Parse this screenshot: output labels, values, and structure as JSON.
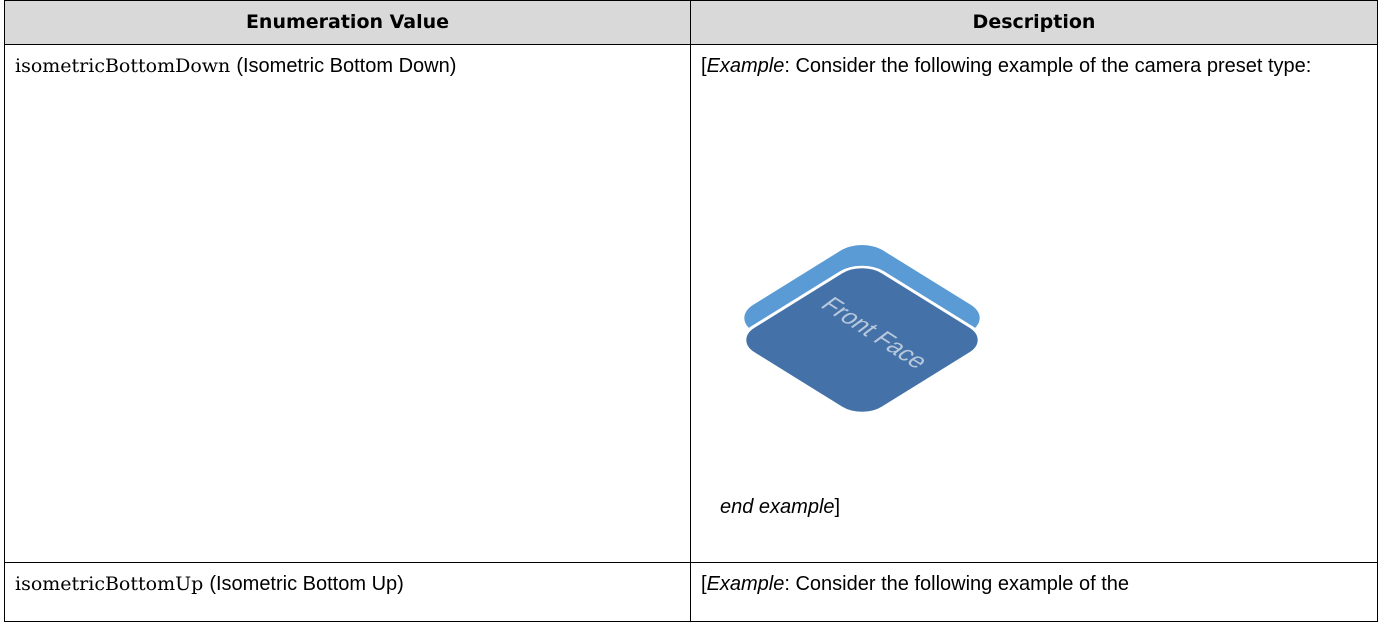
{
  "table": {
    "header": [
      "Enumeration Value",
      "Description"
    ],
    "rows": [
      {
        "value_code": "isometricBottomDown",
        "value_name": "(Isometric Bottom Down)",
        "description": {
          "open": "[",
          "example": "Example",
          "text": ":  Consider the following example of the camera preset type:",
          "image_label": "Front Face",
          "end": "end example",
          "close": "]"
        }
      },
      {
        "value_code": "isometricBottomUp",
        "value_name": "(Isometric Bottom Up)",
        "description": {
          "open": "[",
          "example": "Example",
          "text": ":  Consider the following example of the"
        }
      }
    ]
  }
}
